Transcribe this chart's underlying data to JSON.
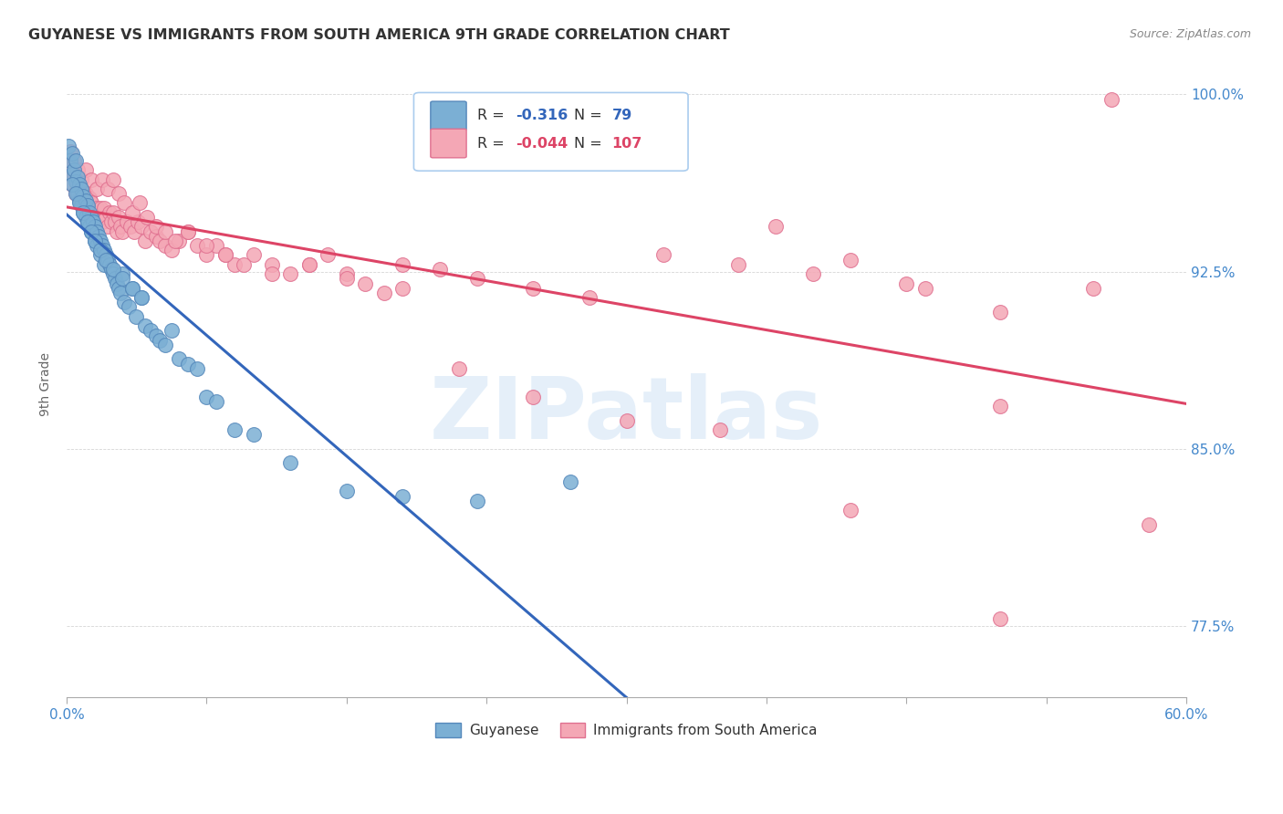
{
  "title": "GUYANESE VS IMMIGRANTS FROM SOUTH AMERICA 9TH GRADE CORRELATION CHART",
  "source": "Source: ZipAtlas.com",
  "ylabel": "9th Grade",
  "xlim": [
    0.0,
    0.6
  ],
  "ylim": [
    0.745,
    1.01
  ],
  "yticks_right": [
    0.775,
    0.85,
    0.925,
    1.0
  ],
  "ytick_right_labels": [
    "77.5%",
    "85.0%",
    "92.5%",
    "100.0%"
  ],
  "blue_R": -0.316,
  "blue_N": 79,
  "pink_R": -0.044,
  "pink_N": 107,
  "blue_color": "#7BAFD4",
  "blue_edge": "#5588BB",
  "pink_color": "#F4A7B5",
  "pink_edge": "#E07090",
  "blue_line_color": "#3366BB",
  "pink_line_color": "#DD4466",
  "tick_color": "#4488CC",
  "background_color": "#ffffff",
  "watermark": "ZIPatlas",
  "blue_dot_x": [
    0.001,
    0.002,
    0.003,
    0.003,
    0.004,
    0.005,
    0.005,
    0.006,
    0.006,
    0.007,
    0.007,
    0.008,
    0.008,
    0.009,
    0.009,
    0.01,
    0.01,
    0.011,
    0.011,
    0.012,
    0.012,
    0.013,
    0.013,
    0.014,
    0.015,
    0.015,
    0.016,
    0.016,
    0.017,
    0.018,
    0.018,
    0.019,
    0.02,
    0.02,
    0.021,
    0.022,
    0.023,
    0.024,
    0.025,
    0.026,
    0.027,
    0.028,
    0.029,
    0.03,
    0.031,
    0.033,
    0.035,
    0.037,
    0.04,
    0.042,
    0.045,
    0.048,
    0.05,
    0.053,
    0.056,
    0.06,
    0.065,
    0.07,
    0.075,
    0.08,
    0.09,
    0.1,
    0.12,
    0.15,
    0.18,
    0.22,
    0.27,
    0.003,
    0.005,
    0.007,
    0.009,
    0.011,
    0.013,
    0.015,
    0.018,
    0.021,
    0.025,
    0.03,
    0.035,
    0.04
  ],
  "blue_dot_y": [
    0.978,
    0.972,
    0.975,
    0.966,
    0.968,
    0.972,
    0.963,
    0.965,
    0.958,
    0.962,
    0.955,
    0.96,
    0.953,
    0.957,
    0.95,
    0.955,
    0.948,
    0.953,
    0.946,
    0.95,
    0.944,
    0.948,
    0.942,
    0.946,
    0.944,
    0.938,
    0.942,
    0.936,
    0.94,
    0.938,
    0.932,
    0.936,
    0.934,
    0.928,
    0.932,
    0.93,
    0.928,
    0.926,
    0.924,
    0.922,
    0.92,
    0.918,
    0.916,
    0.924,
    0.912,
    0.91,
    0.918,
    0.906,
    0.914,
    0.902,
    0.9,
    0.898,
    0.896,
    0.894,
    0.9,
    0.888,
    0.886,
    0.884,
    0.872,
    0.87,
    0.858,
    0.856,
    0.844,
    0.832,
    0.83,
    0.828,
    0.836,
    0.962,
    0.958,
    0.954,
    0.95,
    0.946,
    0.942,
    0.938,
    0.934,
    0.93,
    0.926,
    0.922,
    0.918,
    0.914
  ],
  "pink_dot_x": [
    0.001,
    0.002,
    0.003,
    0.004,
    0.005,
    0.006,
    0.007,
    0.008,
    0.009,
    0.01,
    0.011,
    0.012,
    0.013,
    0.014,
    0.015,
    0.016,
    0.017,
    0.018,
    0.019,
    0.02,
    0.021,
    0.022,
    0.023,
    0.024,
    0.025,
    0.026,
    0.027,
    0.028,
    0.029,
    0.03,
    0.032,
    0.034,
    0.036,
    0.038,
    0.04,
    0.042,
    0.045,
    0.048,
    0.05,
    0.053,
    0.056,
    0.06,
    0.065,
    0.07,
    0.075,
    0.08,
    0.085,
    0.09,
    0.1,
    0.11,
    0.12,
    0.13,
    0.14,
    0.15,
    0.16,
    0.17,
    0.18,
    0.2,
    0.22,
    0.25,
    0.28,
    0.32,
    0.36,
    0.4,
    0.45,
    0.5,
    0.55,
    0.58,
    0.002,
    0.004,
    0.006,
    0.008,
    0.01,
    0.013,
    0.016,
    0.019,
    0.022,
    0.025,
    0.028,
    0.031,
    0.035,
    0.039,
    0.043,
    0.048,
    0.053,
    0.058,
    0.065,
    0.075,
    0.085,
    0.095,
    0.11,
    0.13,
    0.15,
    0.18,
    0.21,
    0.25,
    0.3,
    0.35,
    0.42,
    0.5,
    0.56,
    0.38,
    0.42,
    0.46,
    0.5
  ],
  "pink_dot_y": [
    0.968,
    0.972,
    0.962,
    0.966,
    0.958,
    0.962,
    0.956,
    0.96,
    0.954,
    0.958,
    0.952,
    0.956,
    0.954,
    0.95,
    0.948,
    0.952,
    0.948,
    0.952,
    0.946,
    0.952,
    0.948,
    0.944,
    0.95,
    0.946,
    0.95,
    0.946,
    0.942,
    0.948,
    0.944,
    0.942,
    0.946,
    0.944,
    0.942,
    0.946,
    0.944,
    0.938,
    0.942,
    0.94,
    0.938,
    0.936,
    0.934,
    0.938,
    0.942,
    0.936,
    0.932,
    0.936,
    0.932,
    0.928,
    0.932,
    0.928,
    0.924,
    0.928,
    0.932,
    0.924,
    0.92,
    0.916,
    0.928,
    0.926,
    0.922,
    0.918,
    0.914,
    0.932,
    0.928,
    0.924,
    0.92,
    0.868,
    0.918,
    0.818,
    0.976,
    0.972,
    0.968,
    0.964,
    0.968,
    0.964,
    0.96,
    0.964,
    0.96,
    0.964,
    0.958,
    0.954,
    0.95,
    0.954,
    0.948,
    0.944,
    0.942,
    0.938,
    0.942,
    0.936,
    0.932,
    0.928,
    0.924,
    0.928,
    0.922,
    0.918,
    0.884,
    0.872,
    0.862,
    0.858,
    0.824,
    0.778,
    0.998,
    0.944,
    0.93,
    0.918,
    0.908
  ]
}
